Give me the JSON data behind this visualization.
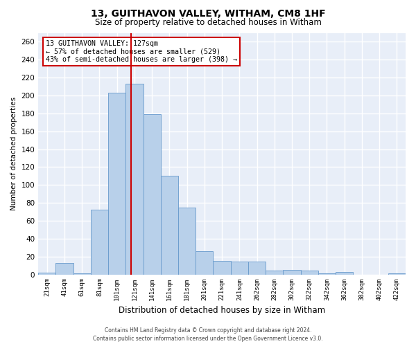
{
  "title_line1": "13, GUITHAVON VALLEY, WITHAM, CM8 1HF",
  "title_line2": "Size of property relative to detached houses in Witham",
  "xlabel": "Distribution of detached houses by size in Witham",
  "ylabel": "Number of detached properties",
  "footer_line1": "Contains HM Land Registry data © Crown copyright and database right 2024.",
  "footer_line2": "Contains public sector information licensed under the Open Government Licence v3.0.",
  "annotation_title": "13 GUITHAVON VALLEY: 127sqm",
  "annotation_line1": "← 57% of detached houses are smaller (529)",
  "annotation_line2": "43% of semi-detached houses are larger (398) →",
  "property_size": 127,
  "bar_colors": {
    "normal": "#b8d0ea",
    "edge": "#6699cc"
  },
  "vline_color": "#cc0000",
  "background_color": "#e8eef8",
  "fig_background": "#ffffff",
  "grid_color": "#ffffff",
  "categories": [
    "21sqm",
    "41sqm",
    "61sqm",
    "81sqm",
    "101sqm",
    "121sqm",
    "141sqm",
    "161sqm",
    "181sqm",
    "201sqm",
    "221sqm",
    "241sqm",
    "262sqm",
    "282sqm",
    "302sqm",
    "322sqm",
    "342sqm",
    "362sqm",
    "382sqm",
    "402sqm",
    "422sqm"
  ],
  "values": [
    2,
    13,
    1,
    72,
    203,
    213,
    179,
    110,
    75,
    26,
    15,
    14,
    14,
    4,
    5,
    4,
    1,
    3,
    0,
    0,
    1
  ],
  "ylim": [
    0,
    270
  ],
  "yticks": [
    0,
    20,
    40,
    60,
    80,
    100,
    120,
    140,
    160,
    180,
    200,
    220,
    240,
    260
  ]
}
